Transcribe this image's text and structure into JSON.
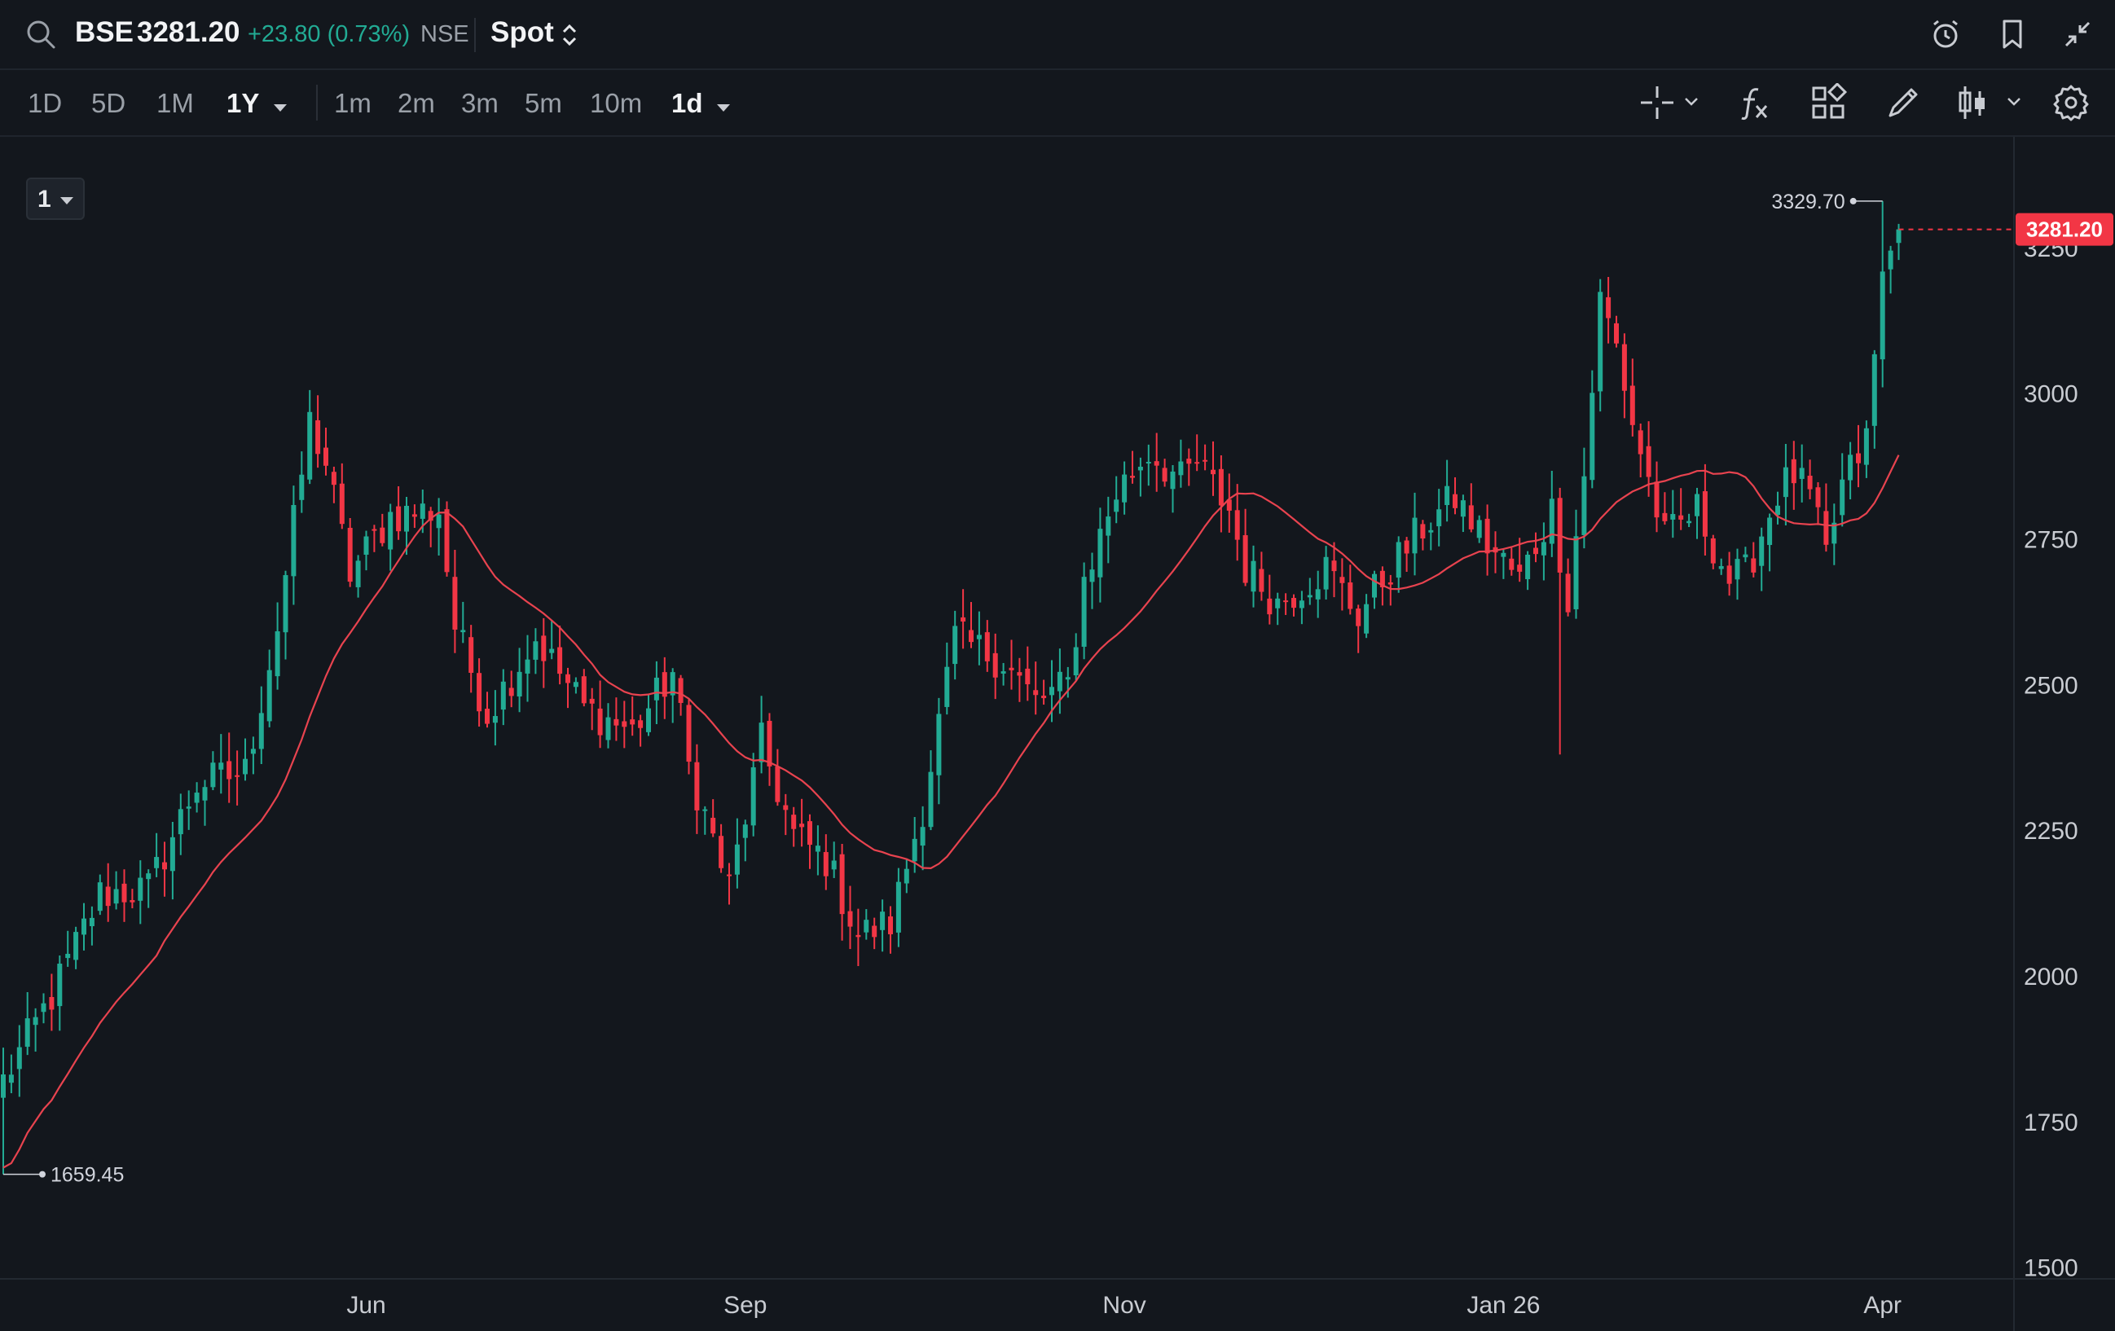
{
  "header": {
    "symbol": "BSE",
    "price": "3281.20",
    "change": "+23.80 (0.73%)",
    "exchange": "NSE",
    "market": "Spot",
    "colors": {
      "up": "#22ab94",
      "down": "#f23645",
      "ma": "#e8434f",
      "price_tag": "#f23645"
    }
  },
  "toolbar": {
    "ranges": [
      "1D",
      "5D",
      "1M",
      "1Y"
    ],
    "active_range": "1Y",
    "intervals": [
      "1m",
      "2m",
      "3m",
      "5m",
      "10m",
      "1d"
    ],
    "active_interval": "1d",
    "tools": [
      "crosshair-icon",
      "indicators-icon",
      "templates-icon",
      "drawing-icon",
      "chart-type-icon",
      "settings-icon"
    ]
  },
  "layout_selector": "1",
  "chart_data": {
    "type": "candlestick",
    "x_labels": [
      "Jun",
      "Sep",
      "Nov",
      "Jan 26",
      "Apr"
    ],
    "y_ticks": [
      1500,
      1750,
      2000,
      2250,
      2500,
      2750,
      3000,
      3250
    ],
    "ylim": [
      1480,
      3440
    ],
    "last_price": 3281.2,
    "last_price_label": "3281.20",
    "high_annotation": {
      "value": 3329.7,
      "label": "3329.70"
    },
    "low_annotation": {
      "value": 1659.45,
      "label": "1659.45"
    },
    "moving_average": true,
    "anchors": [
      [
        0,
        1820
      ],
      [
        6,
        1965
      ],
      [
        12,
        2140
      ],
      [
        18,
        2150
      ],
      [
        24,
        2330
      ],
      [
        30,
        2350
      ],
      [
        34,
        2600
      ],
      [
        38,
        2950
      ],
      [
        40,
        2880
      ],
      [
        43,
        2690
      ],
      [
        48,
        2790
      ],
      [
        54,
        2800
      ],
      [
        56,
        2600
      ],
      [
        60,
        2450
      ],
      [
        66,
        2580
      ],
      [
        72,
        2460
      ],
      [
        78,
        2420
      ],
      [
        83,
        2520
      ],
      [
        85,
        2360
      ],
      [
        90,
        2150
      ],
      [
        94,
        2400
      ],
      [
        98,
        2240
      ],
      [
        102,
        2200
      ],
      [
        106,
        2070
      ],
      [
        110,
        2090
      ],
      [
        114,
        2290
      ],
      [
        118,
        2580
      ],
      [
        124,
        2540
      ],
      [
        128,
        2470
      ],
      [
        132,
        2500
      ],
      [
        134,
        2680
      ],
      [
        138,
        2830
      ],
      [
        142,
        2900
      ],
      [
        146,
        2850
      ],
      [
        148,
        2880
      ],
      [
        152,
        2800
      ],
      [
        154,
        2700
      ],
      [
        158,
        2640
      ],
      [
        164,
        2700
      ],
      [
        168,
        2620
      ],
      [
        172,
        2700
      ],
      [
        176,
        2770
      ],
      [
        180,
        2820
      ],
      [
        184,
        2740
      ],
      [
        188,
        2680
      ],
      [
        192,
        2800
      ],
      [
        194,
        2650
      ],
      [
        196,
        2860
      ],
      [
        198,
        3160
      ],
      [
        200,
        3080
      ],
      [
        202,
        2950
      ],
      [
        206,
        2750
      ],
      [
        210,
        2800
      ],
      [
        214,
        2680
      ],
      [
        216,
        2690
      ],
      [
        220,
        2830
      ],
      [
        222,
        2860
      ],
      [
        224,
        2820
      ],
      [
        226,
        2720
      ],
      [
        228,
        2840
      ],
      [
        231,
        2920
      ],
      [
        233,
        3200
      ],
      [
        235,
        3281.2
      ]
    ]
  }
}
